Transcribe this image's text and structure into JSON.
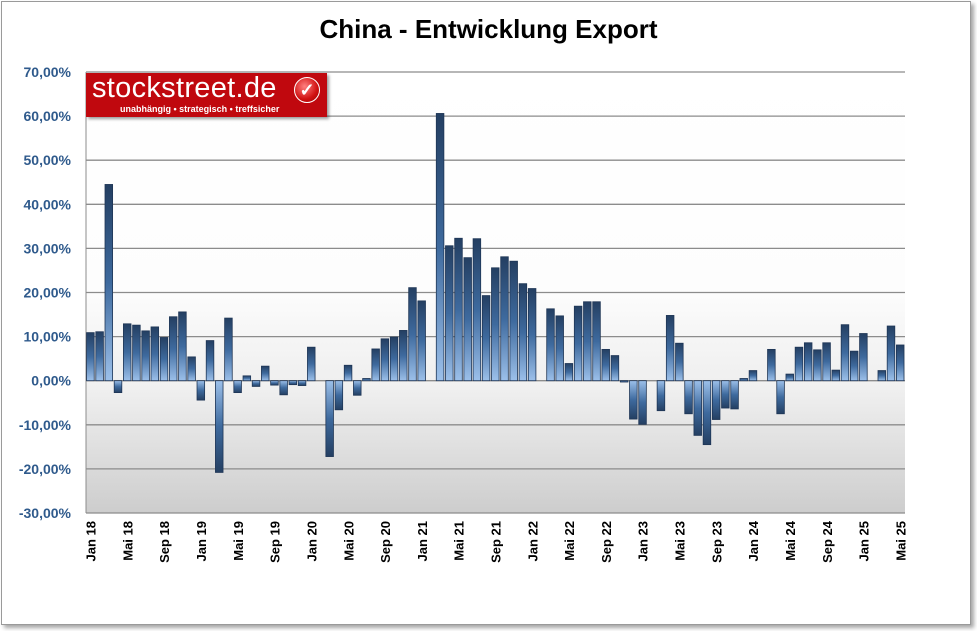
{
  "chart_data": {
    "type": "bar",
    "title": "China - Entwicklung Export",
    "xlabel": "",
    "ylabel": "",
    "ylim": [
      -30,
      70
    ],
    "yticks": [
      "70,00%",
      "60,00%",
      "50,00%",
      "40,00%",
      "30,00%",
      "20,00%",
      "10,00%",
      "0,00%",
      "-10,00%",
      "-20,00%",
      "-30,00%"
    ],
    "grid": true,
    "bar_color": "#3a6596",
    "tick_color": "#2f5a8c",
    "categories": [
      "Jan 18",
      "Feb 18",
      "Mär 18",
      "Apr 18",
      "Mai 18",
      "Jun 18",
      "Jul 18",
      "Aug 18",
      "Sep 18",
      "Okt 18",
      "Nov 18",
      "Dez 18",
      "Jan 19",
      "Feb 19",
      "Mär 19",
      "Apr 19",
      "Mai 19",
      "Jun 19",
      "Jul 19",
      "Aug 19",
      "Sep 19",
      "Okt 19",
      "Nov 19",
      "Dez 19",
      "Jan 20",
      "Feb 20",
      "Mär 20",
      "Apr 20",
      "Mai 20",
      "Jun 20",
      "Jul 20",
      "Aug 20",
      "Sep 20",
      "Okt 20",
      "Nov 20",
      "Dez 20",
      "Jan 21",
      "Feb 21",
      "Mär 21",
      "Apr 21",
      "Mai 21",
      "Jun 21",
      "Jul 21",
      "Aug 21",
      "Sep 21",
      "Okt 21",
      "Nov 21",
      "Dez 21",
      "Jan 22",
      "Feb 22",
      "Mär 22",
      "Apr 22",
      "Mai 22",
      "Jun 22",
      "Jul 22",
      "Aug 22",
      "Sep 22",
      "Okt 22",
      "Nov 22",
      "Dez 22",
      "Jan 23",
      "Feb 23",
      "Mär 23",
      "Apr 23",
      "Mai 23",
      "Jun 23",
      "Jul 23",
      "Aug 23",
      "Sep 23",
      "Okt 23",
      "Nov 23",
      "Dez 23",
      "Jan 24",
      "Feb 24",
      "Mär 24",
      "Apr 24",
      "Mai 24",
      "Jun 24",
      "Jul 24",
      "Aug 24",
      "Sep 24",
      "Okt 24",
      "Nov 24",
      "Dez 24",
      "Jan 25",
      "Feb 25",
      "Mär 25",
      "Apr 25",
      "Mai 25"
    ],
    "values": [
      10.9,
      11.1,
      44.5,
      -2.7,
      12.9,
      12.6,
      11.3,
      12.2,
      9.8,
      14.5,
      15.6,
      5.4,
      -4.4,
      9.1,
      -20.8,
      14.2,
      -2.7,
      1.1,
      -1.3,
      3.3,
      -1.0,
      -3.2,
      -0.9,
      -1.1,
      7.6,
      0,
      -17.2,
      -6.6,
      3.5,
      -3.3,
      0.5,
      7.2,
      9.5,
      9.9,
      11.4,
      21.1,
      18.1,
      0,
      60.6,
      30.6,
      32.3,
      27.9,
      32.2,
      19.3,
      25.6,
      28.1,
      27.1,
      22.0,
      20.9,
      0,
      16.3,
      14.7,
      3.9,
      16.9,
      17.9,
      17.9,
      7.1,
      5.7,
      -0.3,
      -8.7,
      -9.9,
      0,
      -6.8,
      14.8,
      8.5,
      -7.5,
      -12.4,
      -14.5,
      -8.8,
      -6.2,
      -6.4,
      0.5,
      2.3,
      0,
      7.1,
      -7.5,
      1.5,
      7.6,
      8.6,
      7.0,
      8.6,
      2.4,
      12.7,
      6.7,
      10.7,
      0,
      2.3,
      12.4,
      8.1
    ],
    "xtick_labels": [
      "Jan 18",
      "Mai 18",
      "Sep 18",
      "Jan 19",
      "Mai 19",
      "Sep 19",
      "Jan 20",
      "Mai 20",
      "Sep 20",
      "Jan 21",
      "Mai 21",
      "Sep 21",
      "Jan 22",
      "Mai 22",
      "Sep 22",
      "Jan 23",
      "Mai 23",
      "Sep 23",
      "Jan 24",
      "Mai 24",
      "Sep 24",
      "Jan 25",
      "Mai 25"
    ]
  },
  "logo": {
    "name": "stockstreet.de",
    "tagline": "unabhängig • strategisch • treffsicher",
    "brand_color": "#c0080e"
  }
}
